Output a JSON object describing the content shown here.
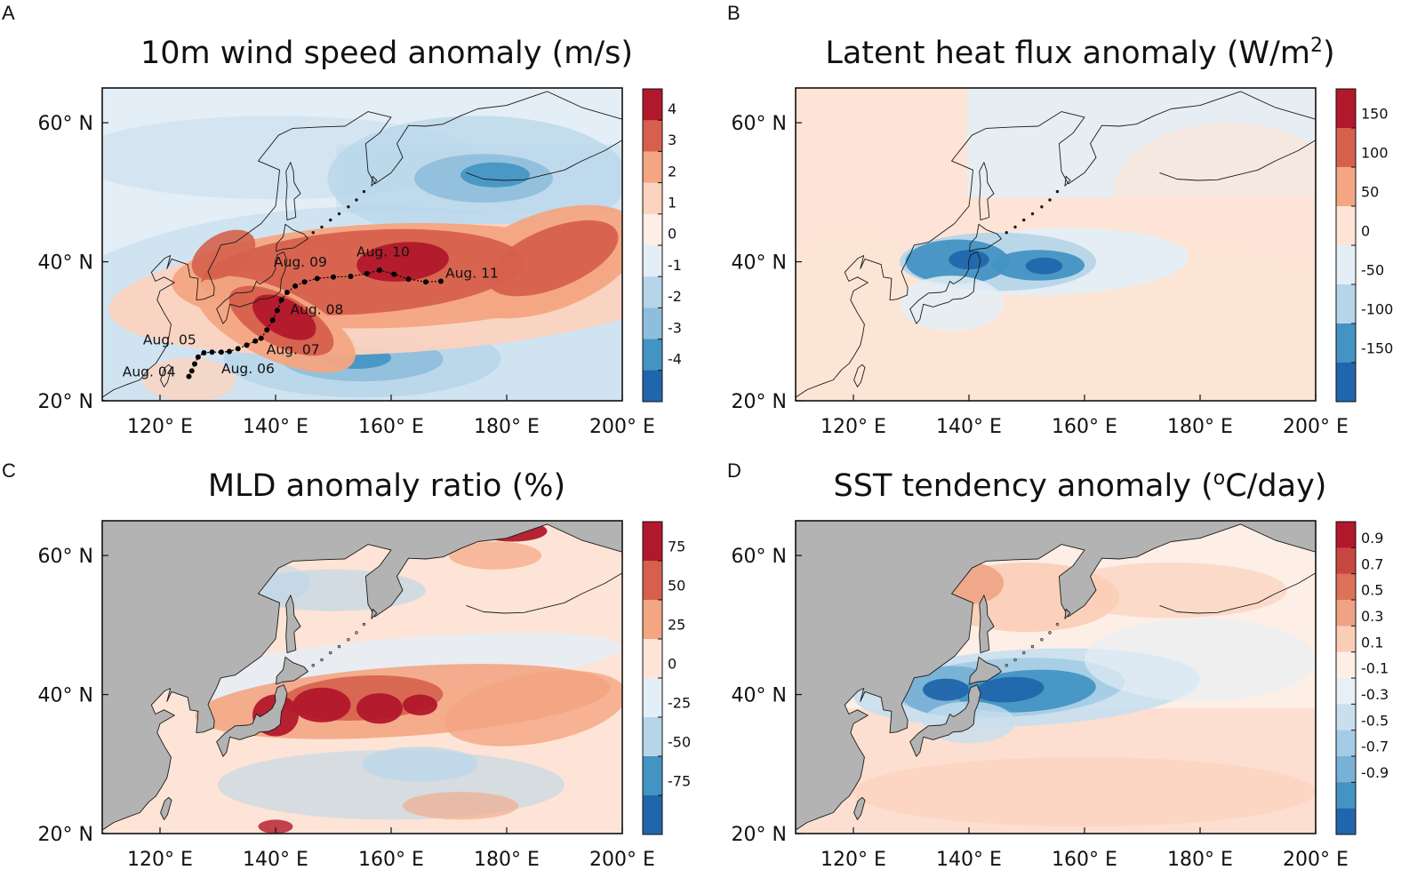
{
  "figure": {
    "panels": [
      {
        "letter": "A",
        "title": "10m wind speed anomaly (m/s)",
        "title_sup": "",
        "title_tail": "",
        "colorbar": {
          "labels": [
            "4",
            "3",
            "2",
            "1",
            "0",
            "-1",
            "-2",
            "-3",
            "-4"
          ],
          "colors": [
            "#b2182b",
            "#d6604d",
            "#f4a582",
            "#fbd3bf",
            "#fdeee6",
            "#e4eef6",
            "#b7d5e9",
            "#8ebedc",
            "#4393c3",
            "#2166ac"
          ]
        },
        "track": {
          "labels": [
            "Aug. 04",
            "Aug. 05",
            "Aug. 06",
            "Aug. 07",
            "Aug. 08",
            "Aug. 09",
            "Aug. 10",
            "Aug. 11"
          ]
        }
      },
      {
        "letter": "B",
        "title": "Latent heat flux anomaly (W/m",
        "title_sup": "2",
        "title_tail": ")",
        "colorbar": {
          "labels": [
            "150",
            "100",
            "50",
            "0",
            "-50",
            "-100",
            "-150"
          ],
          "colors": [
            "#b2182b",
            "#d6604d",
            "#f4a582",
            "#fde4d6",
            "#e4eef6",
            "#b7d5e9",
            "#4393c3",
            "#2166ac"
          ]
        }
      },
      {
        "letter": "C",
        "title": "MLD anomaly ratio (%)",
        "title_sup": "",
        "title_tail": "",
        "colorbar": {
          "labels": [
            "75",
            "50",
            "25",
            "0",
            "-25",
            "-50",
            "-75"
          ],
          "colors": [
            "#b2182b",
            "#d6604d",
            "#f4a582",
            "#fde4d6",
            "#e4eef6",
            "#b7d5e9",
            "#4393c3",
            "#2166ac"
          ]
        }
      },
      {
        "letter": "D",
        "title": "SST tendency anomaly (",
        "title_sup": "o",
        "title_tail": "C/day)",
        "colorbar": {
          "labels": [
            "0.9",
            "0.7",
            "0.5",
            "0.3",
            "0.1",
            "-0.1",
            "-0.3",
            "-0.5",
            "-0.7",
            "-0.9"
          ],
          "colors": [
            "#b2182b",
            "#c94741",
            "#dd7258",
            "#f0a285",
            "#fbcdb6",
            "#fdeee6",
            "#e7f0f7",
            "#c8dfee",
            "#a5cce5",
            "#78b1d6",
            "#4393c3",
            "#2166ac"
          ]
        }
      }
    ],
    "axes": {
      "lon_ticks": [
        "120° E",
        "140° E",
        "160° E",
        "180° E",
        "200° E"
      ],
      "lat_ticks": [
        "60° N",
        "40° N",
        "20° N"
      ]
    },
    "colors": {
      "land": "#b3b3b3",
      "positive": "#b2182b",
      "negative": "#2166ac",
      "neutral": "#f6f6f4"
    }
  },
  "chart_data": [
    {
      "type": "heatmap",
      "panel": "A",
      "title": "10m wind speed anomaly (m/s)",
      "xlim": [
        110,
        200
      ],
      "ylim": [
        20,
        65
      ],
      "xticks": [
        120,
        140,
        160,
        180,
        200
      ],
      "yticks": [
        20,
        40,
        60
      ],
      "colorbar_levels": [
        4,
        3,
        2,
        1,
        0,
        -1,
        -2,
        -3,
        -4
      ],
      "typhoon_track": [
        {
          "label": "Aug. 04",
          "lon": 125.5,
          "lat": 24.0
        },
        {
          "label": "Aug. 05",
          "lon": 126.5,
          "lat": 26.5
        },
        {
          "label": "Aug. 06",
          "lon": 132.0,
          "lat": 27.0
        },
        {
          "label": "Aug. 07",
          "lon": 137.5,
          "lat": 29.0
        },
        {
          "label": "Aug. 08",
          "lon": 141.0,
          "lat": 34.5
        },
        {
          "label": "Aug. 09",
          "lon": 148.0,
          "lat": 37.5
        },
        {
          "label": "Aug. 10",
          "lon": 158.0,
          "lat": 39.0
        },
        {
          "label": "Aug. 11",
          "lon": 170.0,
          "lat": 37.0
        }
      ],
      "track_points": [
        [
          125.0,
          23.5
        ],
        [
          125.5,
          24.3
        ],
        [
          126.0,
          25.3
        ],
        [
          126.6,
          26.3
        ],
        [
          127.6,
          26.9
        ],
        [
          129.0,
          27.0
        ],
        [
          130.6,
          27.0
        ],
        [
          132.0,
          27.1
        ],
        [
          133.5,
          27.5
        ],
        [
          135.0,
          28.0
        ],
        [
          136.5,
          28.6
        ],
        [
          137.5,
          29.0
        ],
        [
          138.5,
          30.2
        ],
        [
          139.5,
          31.6
        ],
        [
          140.3,
          33.0
        ],
        [
          141.0,
          34.5
        ],
        [
          142.0,
          35.6
        ],
        [
          143.4,
          36.5
        ],
        [
          145.0,
          37.1
        ],
        [
          147.2,
          37.6
        ],
        [
          150.0,
          37.8
        ],
        [
          153.0,
          37.9
        ],
        [
          155.8,
          38.3
        ],
        [
          158.0,
          38.8
        ],
        [
          160.5,
          38.2
        ],
        [
          163.0,
          37.5
        ],
        [
          166.0,
          37.1
        ],
        [
          168.6,
          37.2
        ]
      ]
    },
    {
      "type": "heatmap",
      "panel": "B",
      "title": "Latent heat flux anomaly (W/m2)",
      "xlim": [
        110,
        200
      ],
      "ylim": [
        20,
        65
      ],
      "xticks": [
        120,
        140,
        160,
        180,
        200
      ],
      "yticks": [
        20,
        40,
        60
      ],
      "colorbar_levels": [
        150,
        100,
        50,
        0,
        -50,
        -100,
        -150
      ]
    },
    {
      "type": "heatmap",
      "panel": "C",
      "title": "MLD anomaly ratio (%)",
      "xlim": [
        110,
        200
      ],
      "ylim": [
        20,
        65
      ],
      "xticks": [
        120,
        140,
        160,
        180,
        200
      ],
      "yticks": [
        20,
        40,
        60
      ],
      "colorbar_levels": [
        75,
        50,
        25,
        0,
        -25,
        -50,
        -75
      ]
    },
    {
      "type": "heatmap",
      "panel": "D",
      "title": "SST tendency anomaly (oC/day)",
      "xlim": [
        110,
        200
      ],
      "ylim": [
        20,
        65
      ],
      "xticks": [
        120,
        140,
        160,
        180,
        200
      ],
      "yticks": [
        20,
        40,
        60
      ],
      "colorbar_levels": [
        0.9,
        0.7,
        0.5,
        0.3,
        0.1,
        -0.1,
        -0.3,
        -0.5,
        -0.7,
        -0.9
      ]
    }
  ]
}
